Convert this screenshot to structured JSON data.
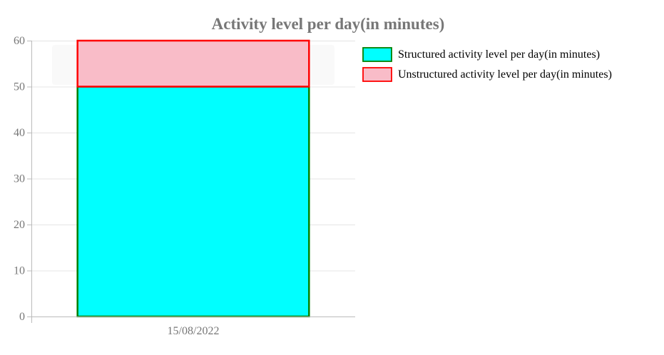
{
  "chart_data": {
    "type": "bar",
    "stacked": true,
    "title": "Activity level per day(in minutes)",
    "xlabel": "",
    "ylabel": "",
    "categories": [
      "15/08/2022"
    ],
    "ylim": [
      0,
      60
    ],
    "yticks": [
      0,
      10,
      20,
      30,
      40,
      50,
      60
    ],
    "grid": true,
    "legend_position": "right",
    "series": [
      {
        "name": "Structured activity level per day(in minutes)",
        "values": [
          50
        ],
        "fill": "#00ffff",
        "stroke": "#008000"
      },
      {
        "name": "Unstructured activity level per day(in minutes)",
        "values": [
          10
        ],
        "fill": "#f9bcc8",
        "stroke": "#ff0000"
      }
    ]
  }
}
